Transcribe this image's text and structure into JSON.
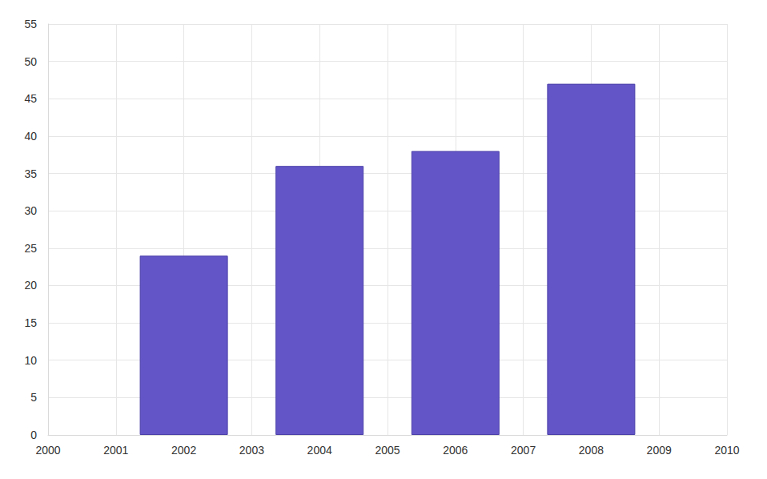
{
  "chart_data": {
    "type": "bar",
    "x": [
      2002,
      2004,
      2006,
      2008
    ],
    "values": [
      24,
      36,
      38,
      47
    ],
    "color": "#6355c7",
    "xlim": [
      2000,
      2010
    ],
    "xticks": [
      2000,
      2001,
      2002,
      2003,
      2004,
      2005,
      2006,
      2007,
      2008,
      2009,
      2010
    ],
    "ylim": [
      0,
      55
    ],
    "yticks": [
      0,
      5,
      10,
      15,
      20,
      25,
      30,
      35,
      40,
      45,
      50,
      55
    ],
    "grid": true
  }
}
